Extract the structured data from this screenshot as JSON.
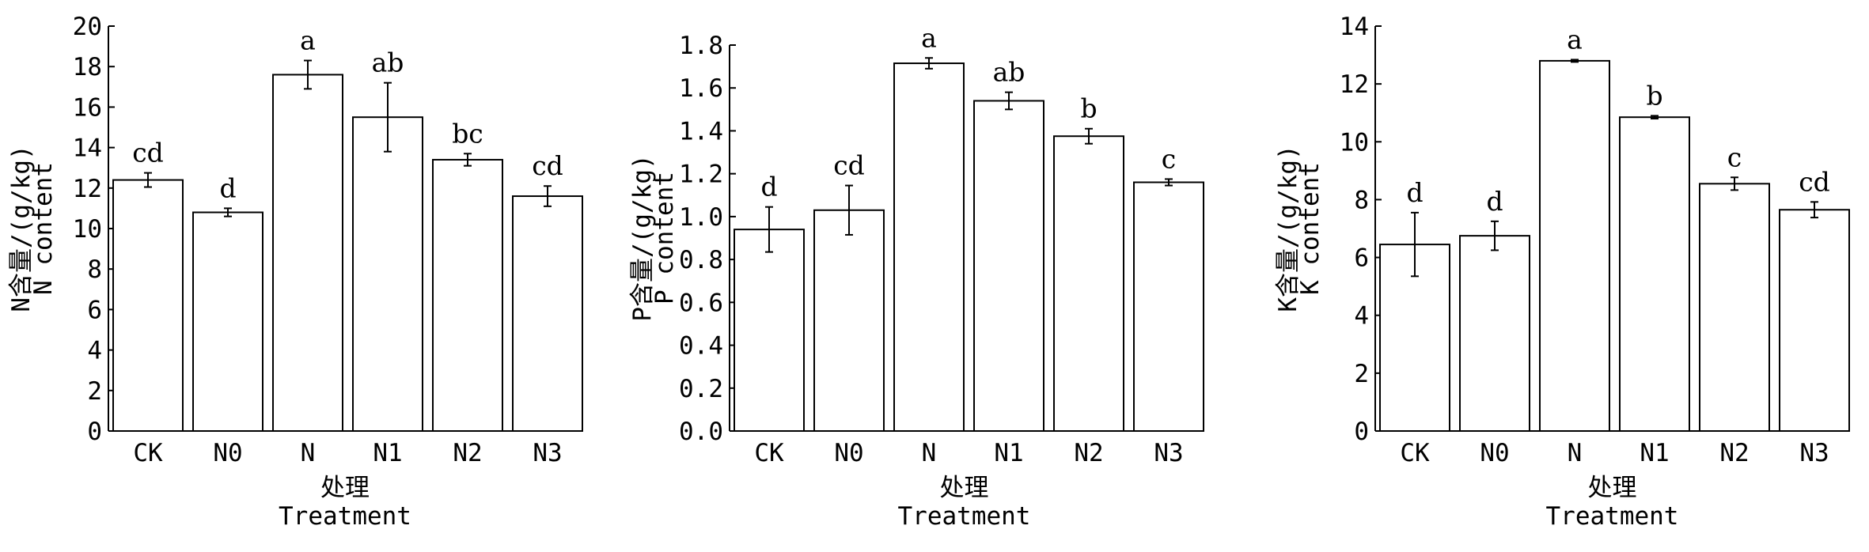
{
  "chart_data": [
    {
      "type": "bar",
      "categories": [
        "CK",
        "N0",
        "N",
        "N1",
        "N2",
        "N3"
      ],
      "values": [
        12.4,
        10.8,
        17.6,
        15.5,
        13.4,
        11.6
      ],
      "error": [
        0.35,
        0.2,
        0.7,
        1.7,
        0.3,
        0.5
      ],
      "significance": [
        "cd",
        "d",
        "a",
        "ab",
        "bc",
        "cd"
      ],
      "ylabel": "N含量/(g/kg)",
      "ylabel2": "N content",
      "xlabel": "处理",
      "xlabel2": "Treatment",
      "ylim": [
        0,
        20
      ],
      "yticks": [
        0,
        2,
        4,
        6,
        8,
        10,
        12,
        14,
        16,
        18,
        20
      ],
      "ytick_labels": [
        "0",
        "2",
        "4",
        "6",
        "8",
        "10",
        "12",
        "14",
        "16",
        "18",
        "20"
      ]
    },
    {
      "type": "bar",
      "categories": [
        "CK",
        "N0",
        "N",
        "N1",
        "N2",
        "N3"
      ],
      "values": [
        0.94,
        1.03,
        1.715,
        1.54,
        1.375,
        1.16
      ],
      "error": [
        0.105,
        0.115,
        0.025,
        0.04,
        0.035,
        0.015
      ],
      "significance": [
        "d",
        "cd",
        "a",
        "ab",
        "b",
        "c"
      ],
      "ylabel": "P含量/(g/kg)",
      "ylabel2": "P content",
      "xlabel": "处理",
      "xlabel2": "Treatment",
      "ylim": [
        0,
        1.8
      ],
      "yticks": [
        0,
        0.2,
        0.4,
        0.6,
        0.8,
        1.0,
        1.2,
        1.4,
        1.6,
        1.8
      ],
      "ytick_labels": [
        "0.0",
        "0.2",
        "0.4",
        "0.6",
        "0.8",
        "1.0",
        "1.2",
        "1.4",
        "1.6",
        "1.8"
      ]
    },
    {
      "type": "bar",
      "categories": [
        "CK",
        "N0",
        "N",
        "N1",
        "N2",
        "N3"
      ],
      "values": [
        6.45,
        6.75,
        12.8,
        10.85,
        8.55,
        7.65
      ],
      "error": [
        1.1,
        0.5,
        0.04,
        0.05,
        0.22,
        0.27
      ],
      "significance": [
        "d",
        "d",
        "a",
        "b",
        "c",
        "cd"
      ],
      "ylabel": "K含量/(g/kg)",
      "ylabel2": "K content",
      "xlabel": "处理",
      "xlabel2": "Treatment",
      "ylim": [
        0,
        14
      ],
      "yticks": [
        0,
        2,
        4,
        6,
        8,
        10,
        12,
        14
      ],
      "ytick_labels": [
        "0",
        "2",
        "4",
        "6",
        "8",
        "10",
        "12",
        "14"
      ]
    }
  ]
}
